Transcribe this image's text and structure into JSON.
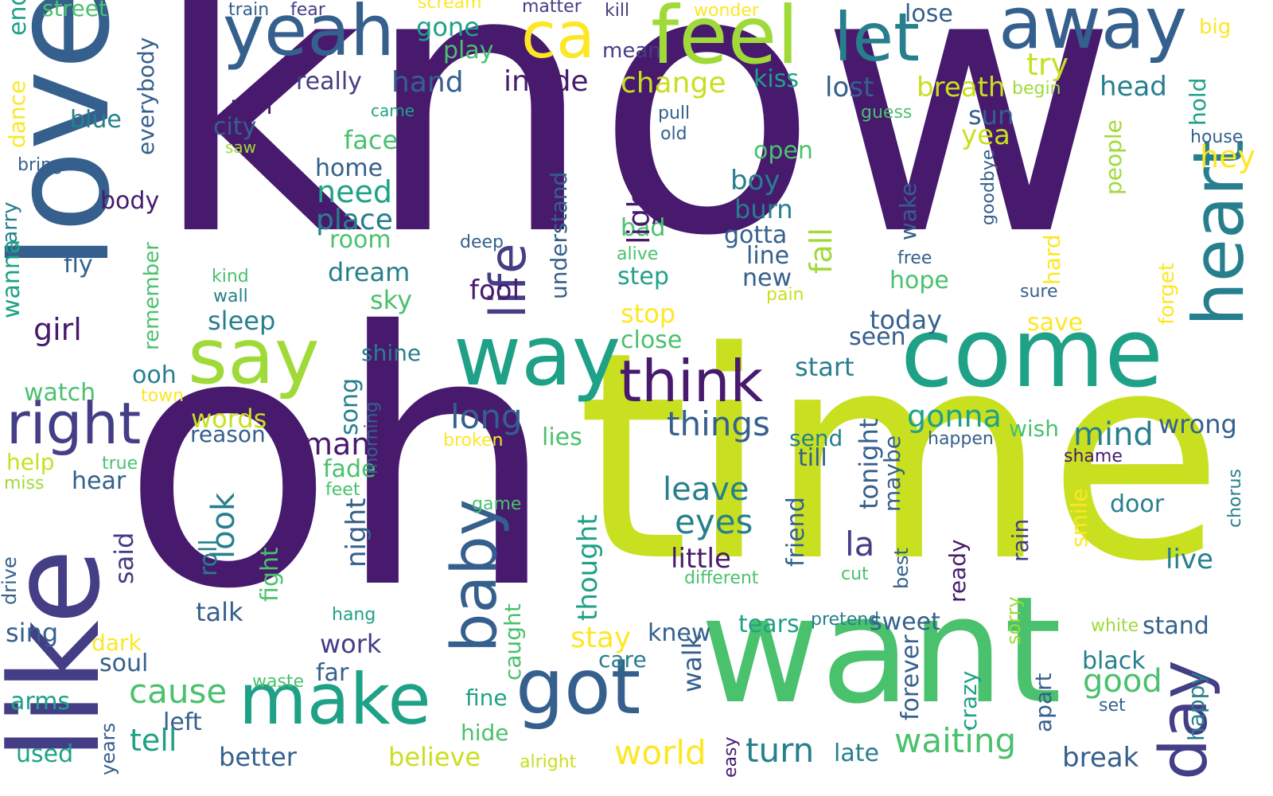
{
  "palette": {
    "c1": "#471A6E",
    "c2": "#433E85",
    "c3": "#35608D",
    "c4": "#277F8E",
    "c5": "#1FA187",
    "c6": "#4AC16D",
    "c7": "#A0DA39",
    "c8": "#C8E020",
    "c9": "#FDE725"
  },
  "words": [
    {
      "text": "know",
      "color": "c1",
      "rotated": false
    },
    {
      "text": "oh",
      "color": "c1",
      "rotated": false
    },
    {
      "text": "time",
      "color": "c8",
      "rotated": false
    },
    {
      "text": "love",
      "color": "c3",
      "rotated": true
    },
    {
      "text": "like",
      "color": "c2",
      "rotated": true
    },
    {
      "text": "want",
      "color": "c6",
      "rotated": false
    },
    {
      "text": "come",
      "color": "c5",
      "rotated": false
    },
    {
      "text": "yeah",
      "color": "c3",
      "rotated": false
    },
    {
      "text": "ca",
      "color": "c9",
      "rotated": false
    },
    {
      "text": "feel",
      "color": "c7",
      "rotated": false
    },
    {
      "text": "let",
      "color": "c4",
      "rotated": false
    },
    {
      "text": "away",
      "color": "c3",
      "rotated": false
    },
    {
      "text": "say",
      "color": "c7",
      "rotated": false
    },
    {
      "text": "way",
      "color": "c5",
      "rotated": false
    },
    {
      "text": "heart",
      "color": "c4",
      "rotated": true
    },
    {
      "text": "make",
      "color": "c5",
      "rotated": false
    },
    {
      "text": "got",
      "color": "c3",
      "rotated": false
    },
    {
      "text": "baby",
      "color": "c3",
      "rotated": true
    },
    {
      "text": "day",
      "color": "c2",
      "rotated": true
    },
    {
      "text": "think",
      "color": "c1",
      "rotated": false
    },
    {
      "text": "right",
      "color": "c2",
      "rotated": false
    },
    {
      "text": "life",
      "color": "c2",
      "rotated": true
    },
    {
      "text": "waiting",
      "color": "c6",
      "rotated": false
    },
    {
      "text": "world",
      "color": "c9",
      "rotated": false
    },
    {
      "text": "turn",
      "color": "c4",
      "rotated": false
    },
    {
      "text": "cause",
      "color": "c6",
      "rotated": false
    },
    {
      "text": "things",
      "color": "c3",
      "rotated": false
    },
    {
      "text": "long",
      "color": "c3",
      "rotated": false
    },
    {
      "text": "eyes",
      "color": "c4",
      "rotated": false
    },
    {
      "text": "leave",
      "color": "c4",
      "rotated": false
    },
    {
      "text": "la",
      "color": "c2",
      "rotated": false
    },
    {
      "text": "good",
      "color": "c6",
      "rotated": false
    },
    {
      "text": "mind",
      "color": "c4",
      "rotated": false
    },
    {
      "text": "man",
      "color": "c1",
      "rotated": false
    },
    {
      "text": "gonna",
      "color": "c5",
      "rotated": false
    },
    {
      "text": "change",
      "color": "c8",
      "rotated": false
    },
    {
      "text": "try",
      "color": "c8",
      "rotated": false
    },
    {
      "text": "hey",
      "color": "c9",
      "rotated": false
    },
    {
      "text": "hand",
      "color": "c3",
      "rotated": false
    },
    {
      "text": "inside",
      "color": "c1",
      "rotated": false
    },
    {
      "text": "head",
      "color": "c4",
      "rotated": false
    },
    {
      "text": "breath",
      "color": "c8",
      "rotated": false
    },
    {
      "text": "lost",
      "color": "c3",
      "rotated": false
    },
    {
      "text": "lose",
      "color": "c3",
      "rotated": false
    },
    {
      "text": "gone",
      "color": "c5",
      "rotated": false
    },
    {
      "text": "play",
      "color": "c6",
      "rotated": false
    },
    {
      "text": "kiss",
      "color": "c5",
      "rotated": false
    },
    {
      "text": "street",
      "color": "c6",
      "rotated": false
    },
    {
      "text": "train",
      "color": "c3",
      "rotated": false
    },
    {
      "text": "fear",
      "color": "c2",
      "rotated": false
    },
    {
      "text": "scream",
      "color": "c9",
      "rotated": false
    },
    {
      "text": "matter",
      "color": "c2",
      "rotated": false
    },
    {
      "text": "kill",
      "color": "c2",
      "rotated": false
    },
    {
      "text": "wonder",
      "color": "c9",
      "rotated": false
    },
    {
      "text": "big",
      "color": "c9",
      "rotated": false
    },
    {
      "text": "mean",
      "color": "c2",
      "rotated": false
    },
    {
      "text": "really",
      "color": "c2",
      "rotated": false
    },
    {
      "text": "run",
      "color": "c1",
      "rotated": false
    },
    {
      "text": "city",
      "color": "c3",
      "rotated": false
    },
    {
      "text": "blue",
      "color": "c4",
      "rotated": false
    },
    {
      "text": "came",
      "color": "c5",
      "rotated": false
    },
    {
      "text": "saw",
      "color": "c7",
      "rotated": false
    },
    {
      "text": "bring",
      "color": "c3",
      "rotated": false
    },
    {
      "text": "body",
      "color": "c1",
      "rotated": false
    },
    {
      "text": "fly",
      "color": "c3",
      "rotated": false
    },
    {
      "text": "girl",
      "color": "c1",
      "rotated": false
    },
    {
      "text": "face",
      "color": "c6",
      "rotated": false
    },
    {
      "text": "home",
      "color": "c3",
      "rotated": false
    },
    {
      "text": "need",
      "color": "c5",
      "rotated": false
    },
    {
      "text": "place",
      "color": "c4",
      "rotated": false
    },
    {
      "text": "room",
      "color": "c6",
      "rotated": false
    },
    {
      "text": "dream",
      "color": "c4",
      "rotated": false
    },
    {
      "text": "sky",
      "color": "c6",
      "rotated": false
    },
    {
      "text": "sleep",
      "color": "c4",
      "rotated": false
    },
    {
      "text": "shine",
      "color": "c4",
      "rotated": false
    },
    {
      "text": "ooh",
      "color": "c4",
      "rotated": false
    },
    {
      "text": "watch",
      "color": "c6",
      "rotated": false
    },
    {
      "text": "town",
      "color": "c9",
      "rotated": false
    },
    {
      "text": "words",
      "color": "c8",
      "rotated": false
    },
    {
      "text": "reason",
      "color": "c3",
      "rotated": false
    },
    {
      "text": "help",
      "color": "c8",
      "rotated": false
    },
    {
      "text": "true",
      "color": "c6",
      "rotated": false
    },
    {
      "text": "miss",
      "color": "c7",
      "rotated": false
    },
    {
      "text": "hear",
      "color": "c3",
      "rotated": false
    },
    {
      "text": "fool",
      "color": "c1",
      "rotated": false
    },
    {
      "text": "pull",
      "color": "c3",
      "rotated": false
    },
    {
      "text": "old",
      "color": "c3",
      "rotated": false
    },
    {
      "text": "guess",
      "color": "c6",
      "rotated": false
    },
    {
      "text": "begin",
      "color": "c7",
      "rotated": false
    },
    {
      "text": "house",
      "color": "c3",
      "rotated": false
    },
    {
      "text": "open",
      "color": "c6",
      "rotated": false
    },
    {
      "text": "yea",
      "color": "c8",
      "rotated": false
    },
    {
      "text": "sun",
      "color": "c3",
      "rotated": false
    },
    {
      "text": "boy",
      "color": "c4",
      "rotated": false
    },
    {
      "text": "burn",
      "color": "c4",
      "rotated": false
    },
    {
      "text": "gotta",
      "color": "c3",
      "rotated": false
    },
    {
      "text": "line",
      "color": "c3",
      "rotated": false
    },
    {
      "text": "new",
      "color": "c3",
      "rotated": false
    },
    {
      "text": "free",
      "color": "c3",
      "rotated": false
    },
    {
      "text": "hope",
      "color": "c6",
      "rotated": false
    },
    {
      "text": "sure",
      "color": "c3",
      "rotated": false
    },
    {
      "text": "bad",
      "color": "c6",
      "rotated": false
    },
    {
      "text": "alive",
      "color": "c6",
      "rotated": false
    },
    {
      "text": "step",
      "color": "c5",
      "rotated": false
    },
    {
      "text": "deep",
      "color": "c3",
      "rotated": false
    },
    {
      "text": "kind",
      "color": "c6",
      "rotated": false
    },
    {
      "text": "wall",
      "color": "c4",
      "rotated": false
    },
    {
      "text": "pain",
      "color": "c8",
      "rotated": false
    },
    {
      "text": "stop",
      "color": "c9",
      "rotated": false
    },
    {
      "text": "close",
      "color": "c6",
      "rotated": false
    },
    {
      "text": "today",
      "color": "c3",
      "rotated": false
    },
    {
      "text": "seen",
      "color": "c3",
      "rotated": false
    },
    {
      "text": "save",
      "color": "c9",
      "rotated": false
    },
    {
      "text": "start",
      "color": "c4",
      "rotated": false
    },
    {
      "text": "wrong",
      "color": "c3",
      "rotated": false
    },
    {
      "text": "wish",
      "color": "c6",
      "rotated": false
    },
    {
      "text": "send",
      "color": "c4",
      "rotated": false
    },
    {
      "text": "till",
      "color": "c3",
      "rotated": false
    },
    {
      "text": "happen",
      "color": "c3",
      "rotated": false
    },
    {
      "text": "broken",
      "color": "c9",
      "rotated": false
    },
    {
      "text": "shame",
      "color": "c1",
      "rotated": false
    },
    {
      "text": "lies",
      "color": "c6",
      "rotated": false
    },
    {
      "text": "fade",
      "color": "c6",
      "rotated": false
    },
    {
      "text": "feet",
      "color": "c6",
      "rotated": false
    },
    {
      "text": "game",
      "color": "c6",
      "rotated": false
    },
    {
      "text": "door",
      "color": "c4",
      "rotated": false
    },
    {
      "text": "live",
      "color": "c4",
      "rotated": false
    },
    {
      "text": "little",
      "color": "c1",
      "rotated": false
    },
    {
      "text": "different",
      "color": "c6",
      "rotated": false
    },
    {
      "text": "cut",
      "color": "c6",
      "rotated": false
    },
    {
      "text": "talk",
      "color": "c3",
      "rotated": false
    },
    {
      "text": "hang",
      "color": "c5",
      "rotated": false
    },
    {
      "text": "pretend",
      "color": "c4",
      "rotated": false
    },
    {
      "text": "tears",
      "color": "c5",
      "rotated": false
    },
    {
      "text": "sweet",
      "color": "c3",
      "rotated": false
    },
    {
      "text": "stand",
      "color": "c3",
      "rotated": false
    },
    {
      "text": "white",
      "color": "c7",
      "rotated": false
    },
    {
      "text": "knew",
      "color": "c3",
      "rotated": false
    },
    {
      "text": "stay",
      "color": "c9",
      "rotated": false
    },
    {
      "text": "work",
      "color": "c2",
      "rotated": false
    },
    {
      "text": "dark",
      "color": "c9",
      "rotated": false
    },
    {
      "text": "soul",
      "color": "c3",
      "rotated": false
    },
    {
      "text": "sing",
      "color": "c3",
      "rotated": false
    },
    {
      "text": "care",
      "color": "c4",
      "rotated": false
    },
    {
      "text": "far",
      "color": "c3",
      "rotated": false
    },
    {
      "text": "black",
      "color": "c4",
      "rotated": false
    },
    {
      "text": "waste",
      "color": "c6",
      "rotated": false
    },
    {
      "text": "arms",
      "color": "c5",
      "rotated": false
    },
    {
      "text": "fine",
      "color": "c5",
      "rotated": false
    },
    {
      "text": "left",
      "color": "c3",
      "rotated": false
    },
    {
      "text": "set",
      "color": "c3",
      "rotated": false
    },
    {
      "text": "tell",
      "color": "c5",
      "rotated": false
    },
    {
      "text": "better",
      "color": "c3",
      "rotated": false
    },
    {
      "text": "believe",
      "color": "c8",
      "rotated": false
    },
    {
      "text": "hide",
      "color": "c6",
      "rotated": false
    },
    {
      "text": "used",
      "color": "c5",
      "rotated": false
    },
    {
      "text": "alright",
      "color": "c8",
      "rotated": false
    },
    {
      "text": "late",
      "color": "c4",
      "rotated": false
    },
    {
      "text": "break",
      "color": "c3",
      "rotated": false
    },
    {
      "text": "end",
      "color": "c5",
      "rotated": true
    },
    {
      "text": "dance",
      "color": "c9",
      "rotated": true
    },
    {
      "text": "carry",
      "color": "c4",
      "rotated": true
    },
    {
      "text": "wanna",
      "color": "c5",
      "rotated": true
    },
    {
      "text": "drive",
      "color": "c3",
      "rotated": true
    },
    {
      "text": "everybody",
      "color": "c3",
      "rotated": true
    },
    {
      "text": "remember",
      "color": "c6",
      "rotated": true
    },
    {
      "text": "song",
      "color": "c4",
      "rotated": true
    },
    {
      "text": "morning",
      "color": "c3",
      "rotated": true
    },
    {
      "text": "said",
      "color": "c2",
      "rotated": true
    },
    {
      "text": "roll",
      "color": "c4",
      "rotated": true
    },
    {
      "text": "look",
      "color": "c4",
      "rotated": true
    },
    {
      "text": "fight",
      "color": "c6",
      "rotated": true
    },
    {
      "text": "night",
      "color": "c3",
      "rotated": true
    },
    {
      "text": "years",
      "color": "c3",
      "rotated": true
    },
    {
      "text": "understand",
      "color": "c3",
      "rotated": true
    },
    {
      "text": "thought",
      "color": "c5",
      "rotated": true
    },
    {
      "text": "caught",
      "color": "c6",
      "rotated": true
    },
    {
      "text": "light",
      "color": "c1",
      "rotated": true
    },
    {
      "text": "walk",
      "color": "c3",
      "rotated": true
    },
    {
      "text": "fall",
      "color": "c7",
      "rotated": true
    },
    {
      "text": "tonight",
      "color": "c3",
      "rotated": true
    },
    {
      "text": "maybe",
      "color": "c3",
      "rotated": true
    },
    {
      "text": "friend",
      "color": "c3",
      "rotated": true
    },
    {
      "text": "best",
      "color": "c3",
      "rotated": true
    },
    {
      "text": "forever",
      "color": "c3",
      "rotated": true
    },
    {
      "text": "wake",
      "color": "c3",
      "rotated": true
    },
    {
      "text": "hard",
      "color": "c9",
      "rotated": true
    },
    {
      "text": "ready",
      "color": "c1",
      "rotated": true
    },
    {
      "text": "sorry",
      "color": "c7",
      "rotated": true
    },
    {
      "text": "rain",
      "color": "c2",
      "rotated": true
    },
    {
      "text": "crazy",
      "color": "c5",
      "rotated": true
    },
    {
      "text": "apart",
      "color": "c3",
      "rotated": true
    },
    {
      "text": "easy",
      "color": "c1",
      "rotated": true
    },
    {
      "text": "people",
      "color": "c7",
      "rotated": true
    },
    {
      "text": "goodbye",
      "color": "c3",
      "rotated": true
    },
    {
      "text": "forget",
      "color": "c9",
      "rotated": true
    },
    {
      "text": "smile",
      "color": "c9",
      "rotated": true
    },
    {
      "text": "happy",
      "color": "c4",
      "rotated": true
    },
    {
      "text": "hold",
      "color": "c5",
      "rotated": true
    },
    {
      "text": "chorus",
      "color": "c4",
      "rotated": true
    }
  ]
}
